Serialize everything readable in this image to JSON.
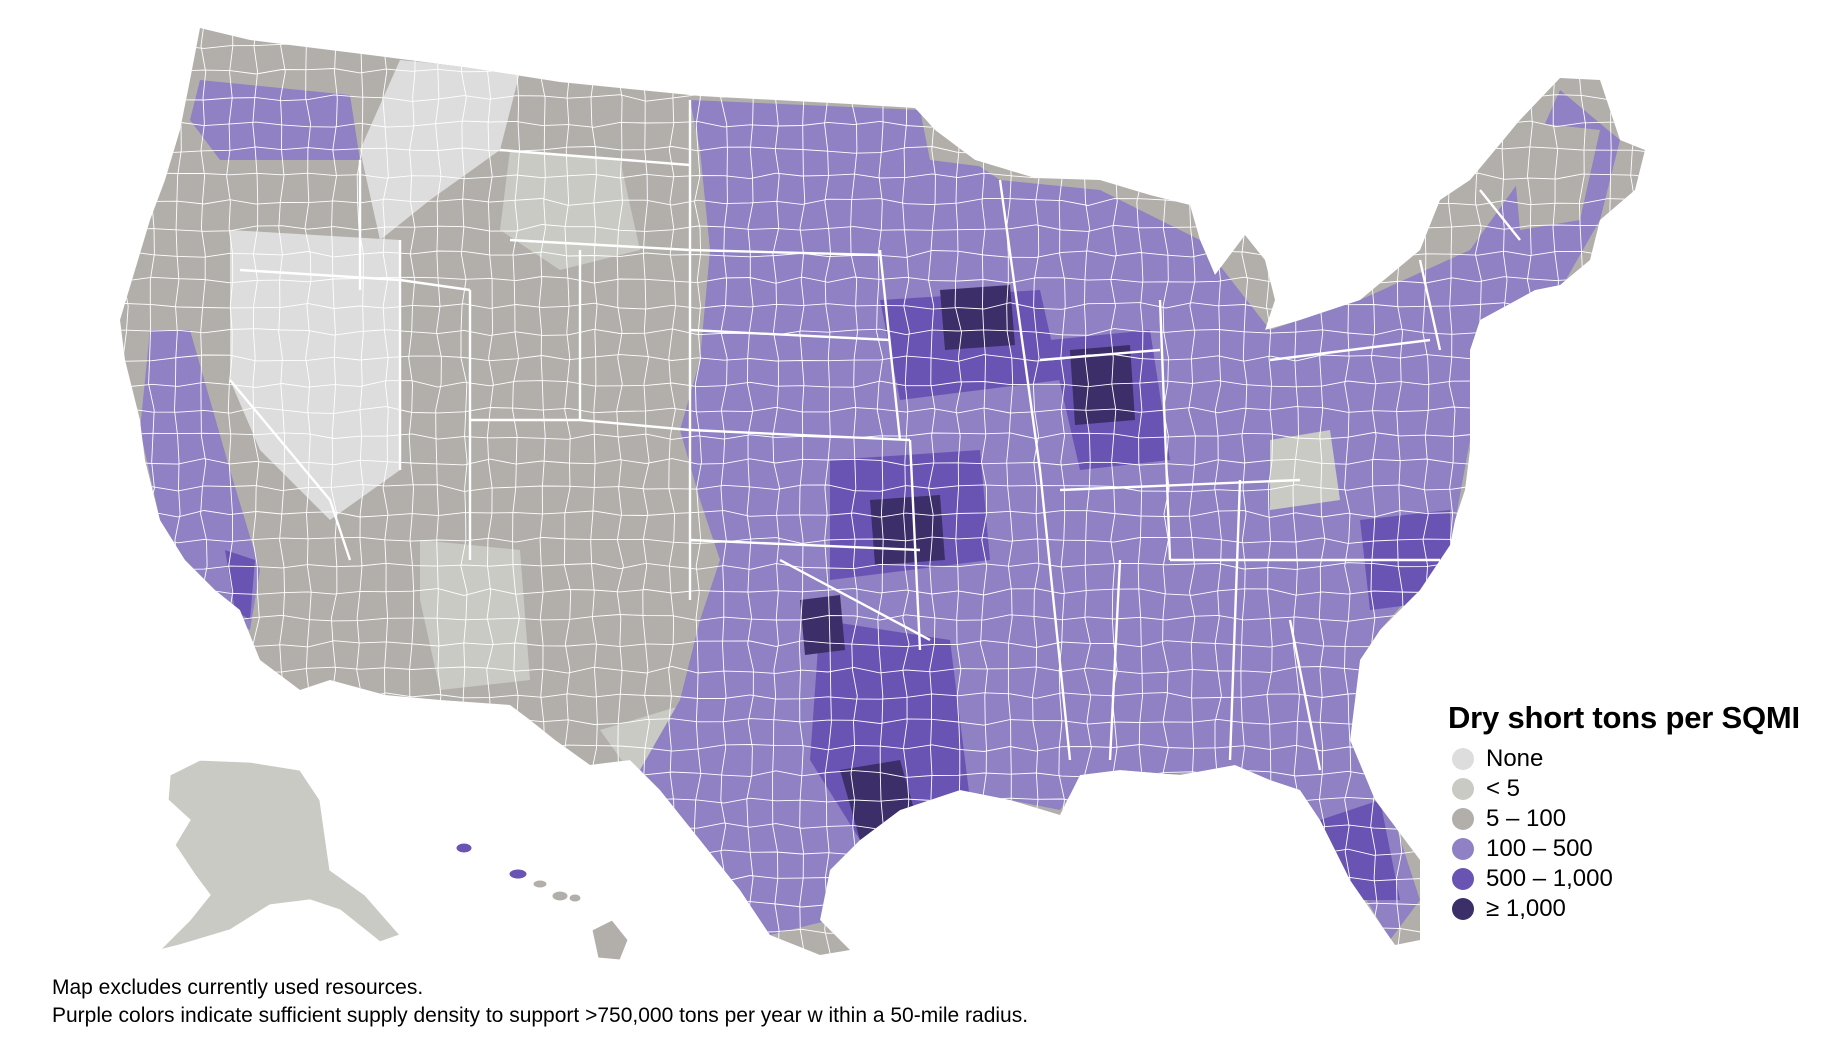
{
  "legend": {
    "title": "Dry short tons per SQMI",
    "items": [
      {
        "label": "None",
        "color": "#dddddd"
      },
      {
        "label": "< 5",
        "color": "#cacac4"
      },
      {
        "label": "5 – 100",
        "color": "#b2afab"
      },
      {
        "label": "100 – 500",
        "color": "#8f81c3"
      },
      {
        "label": "500 – 1,000",
        "color": "#6a54b3"
      },
      {
        "label": "≥ 1,000",
        "color": "#3c2e68"
      }
    ]
  },
  "footnote": {
    "line1": "Map excludes currently used resources.",
    "line2": "Purple colors indicate sufficient supply density to support >750,000 tons per year w ithin a 50-mile radius."
  },
  "colors": {
    "none": "#dddddd",
    "lt5": "#cacac4",
    "c5_100": "#b2afab",
    "c100_500": "#8f81c3",
    "c500_1000": "#6a54b3",
    "ge1000": "#3c2e68",
    "border": "#ffffff"
  }
}
